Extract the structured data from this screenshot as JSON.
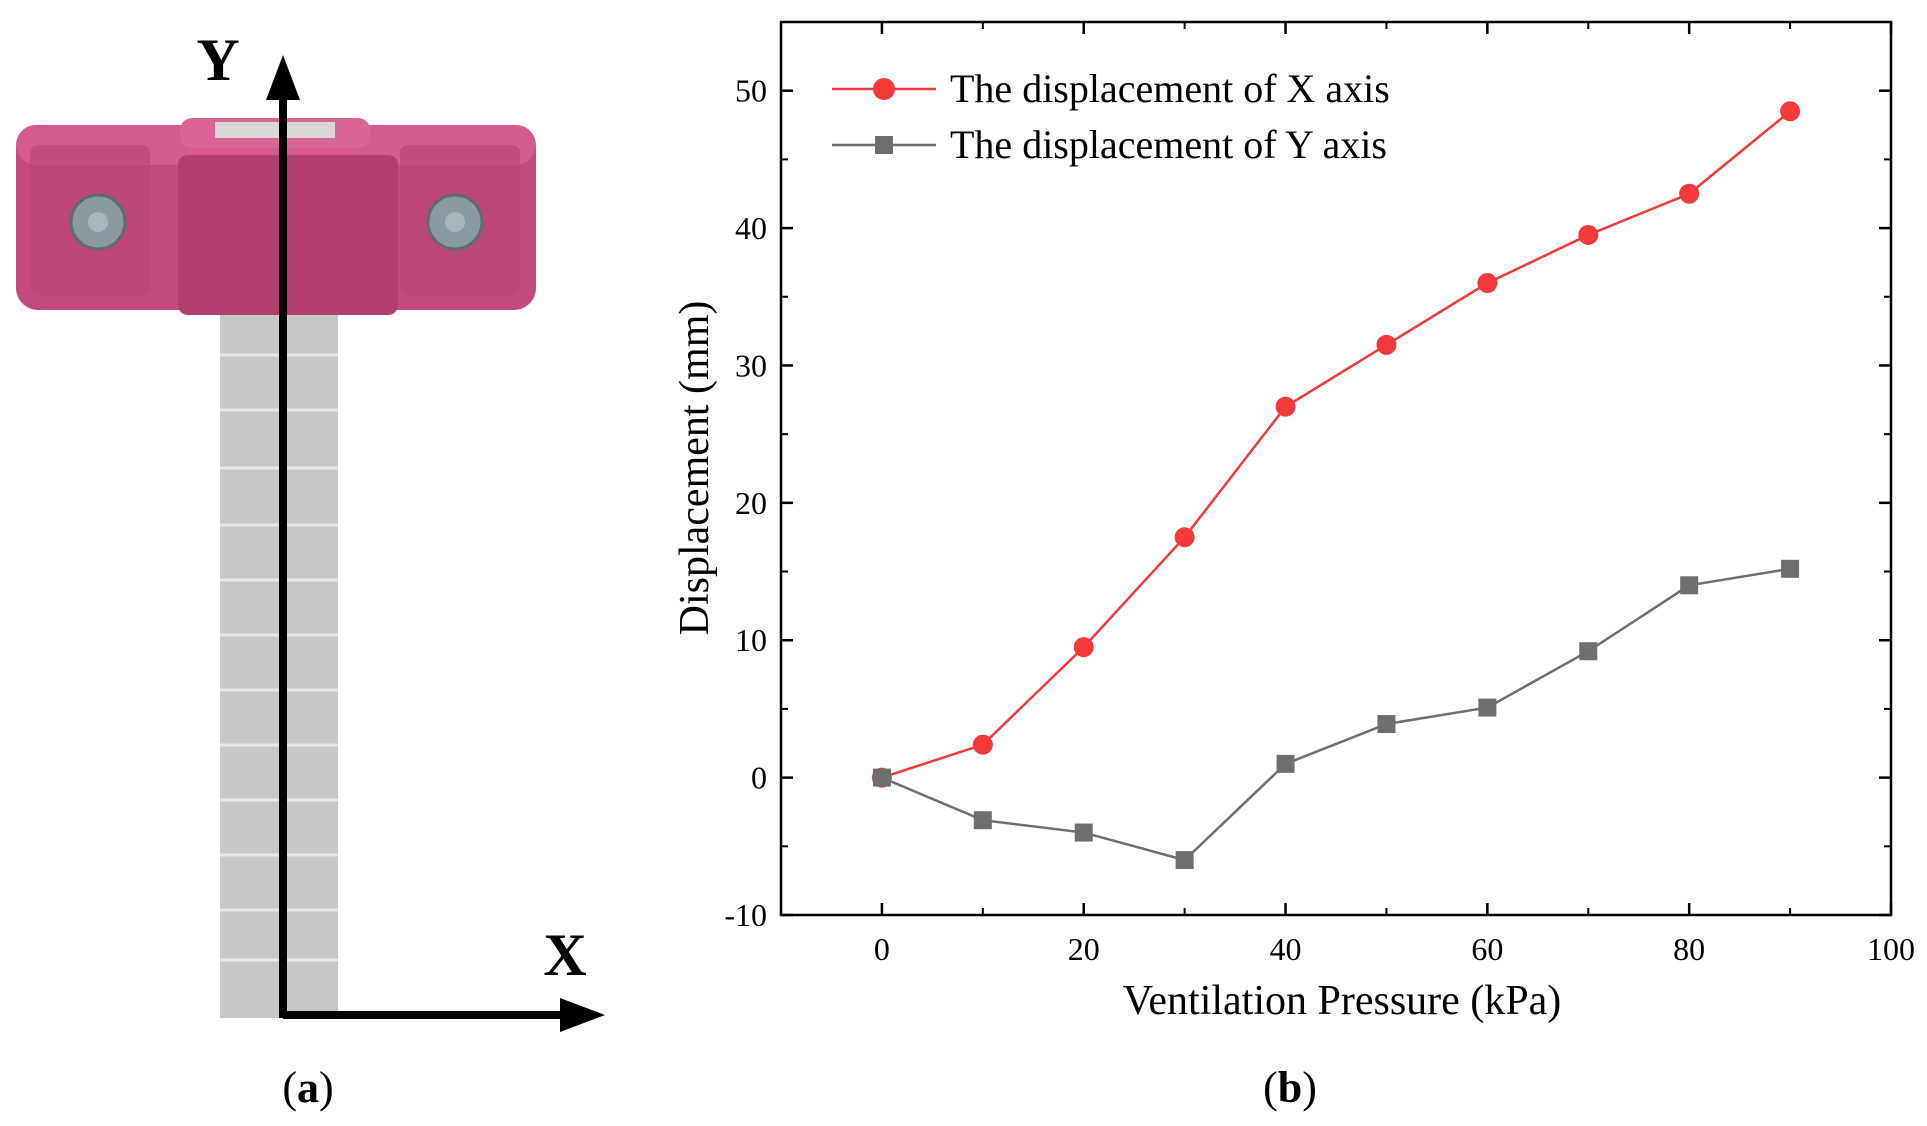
{
  "panel_a": {
    "caption_letter": "a",
    "y_axis_label": "Y",
    "x_axis_label": "X"
  },
  "panel_b": {
    "caption_letter": "b"
  },
  "colors": {
    "series_x": "#f23a3a",
    "series_y": "#6e6e6e",
    "clamp": "#c24a7c",
    "strip": "#c8c8c8",
    "screw": "#8a9aa0"
  },
  "chart_data": {
    "type": "line",
    "title": "",
    "xlabel": "Ventilation Pressure (kPa)",
    "ylabel": "Displacement (mm)",
    "xlim": [
      -10,
      100
    ],
    "ylim": [
      -10,
      55
    ],
    "x_ticks": [
      0,
      20,
      40,
      60,
      80,
      100
    ],
    "y_ticks": [
      -10,
      0,
      10,
      20,
      30,
      40,
      50
    ],
    "legend_position": "top-left",
    "grid": false,
    "series": [
      {
        "name": "The displacement of X axis",
        "marker": "circle",
        "color": "#f23a3a",
        "x": [
          0,
          10,
          20,
          30,
          40,
          50,
          60,
          70,
          80,
          90
        ],
        "y": [
          0,
          2.4,
          9.5,
          17.5,
          27,
          31.5,
          36,
          39.5,
          42.5,
          48.5
        ]
      },
      {
        "name": "The displacement of Y axis",
        "marker": "square",
        "color": "#6e6e6e",
        "x": [
          0,
          10,
          20,
          30,
          40,
          50,
          60,
          70,
          80,
          90
        ],
        "y": [
          0,
          -3.1,
          -4,
          -6,
          1,
          3.9,
          5.1,
          9.2,
          14,
          15.2
        ]
      }
    ]
  }
}
